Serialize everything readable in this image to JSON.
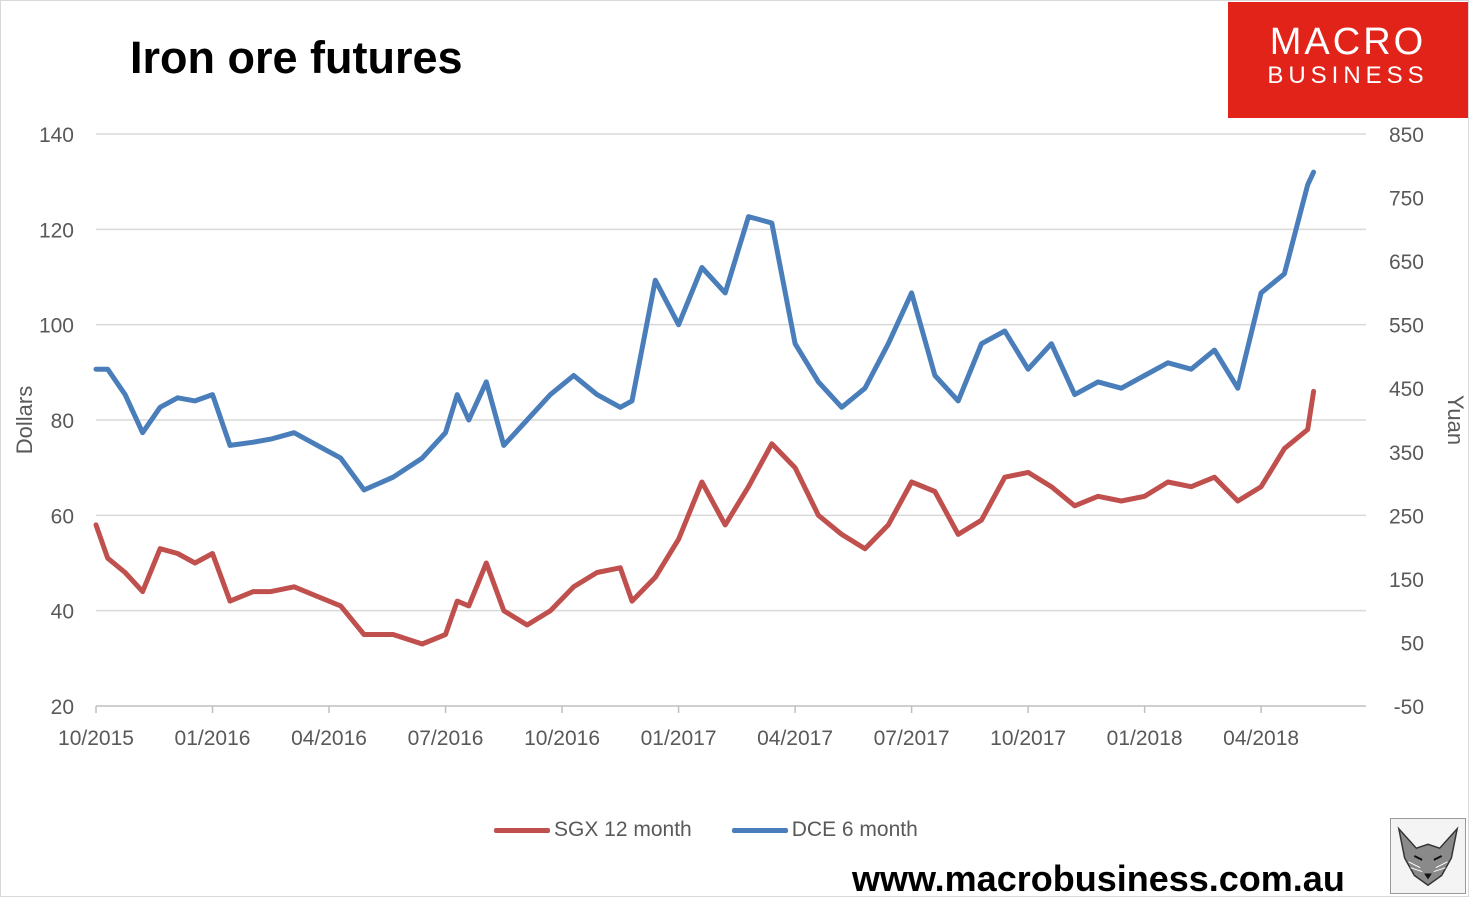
{
  "chart_data": {
    "type": "line",
    "title": "Iron ore futures",
    "ylabel": "Dollars",
    "y2label": "Yuan",
    "ylim": [
      20,
      140
    ],
    "y2lim": [
      -50,
      850
    ],
    "yticks": [
      20,
      40,
      60,
      80,
      100,
      120,
      140
    ],
    "y2ticks": [
      -50,
      50,
      150,
      250,
      350,
      450,
      550,
      650,
      750,
      850
    ],
    "xticks": [
      "10/2015",
      "01/2016",
      "04/2016",
      "07/2016",
      "10/2016",
      "01/2017",
      "04/2017",
      "07/2017",
      "10/2017",
      "01/2018",
      "04/2018"
    ],
    "grid": true,
    "legend_position": "bottom",
    "series": [
      {
        "name": "SGX 12 month",
        "axis": "left",
        "color": "#c0504d",
        "x": [
          0,
          0.1,
          0.25,
          0.4,
          0.55,
          0.7,
          0.85,
          1,
          1.15,
          1.35,
          1.5,
          1.7,
          1.9,
          2.1,
          2.3,
          2.55,
          2.8,
          3,
          3.1,
          3.2,
          3.35,
          3.5,
          3.7,
          3.9,
          4.1,
          4.3,
          4.5,
          4.6,
          4.8,
          5,
          5.2,
          5.4,
          5.6,
          5.8,
          6,
          6.2,
          6.4,
          6.6,
          6.8,
          7,
          7.2,
          7.4,
          7.6,
          7.8,
          8,
          8.2,
          8.4,
          8.6,
          8.8,
          9,
          9.2,
          9.4,
          9.6,
          9.8,
          10,
          10.2,
          10.4,
          10.45
        ],
        "y": [
          58,
          51,
          48,
          44,
          53,
          52,
          50,
          52,
          42,
          44,
          44,
          45,
          43,
          41,
          35,
          35,
          33,
          35,
          42,
          41,
          50,
          40,
          37,
          40,
          45,
          48,
          49,
          42,
          47,
          55,
          67,
          58,
          66,
          75,
          70,
          60,
          56,
          53,
          58,
          67,
          65,
          56,
          59,
          68,
          69,
          66,
          62,
          64,
          63,
          64,
          67,
          66,
          68,
          63,
          66,
          74,
          78,
          86
        ]
      },
      {
        "name": "DCE 6 month",
        "axis": "right",
        "color": "#4a7ebb",
        "x": [
          0,
          0.1,
          0.25,
          0.4,
          0.55,
          0.7,
          0.85,
          1,
          1.15,
          1.35,
          1.5,
          1.7,
          1.9,
          2.1,
          2.3,
          2.55,
          2.8,
          3,
          3.1,
          3.2,
          3.35,
          3.5,
          3.7,
          3.9,
          4.1,
          4.3,
          4.5,
          4.6,
          4.8,
          5,
          5.2,
          5.4,
          5.6,
          5.8,
          6,
          6.2,
          6.4,
          6.6,
          6.8,
          7,
          7.2,
          7.4,
          7.6,
          7.8,
          8,
          8.2,
          8.4,
          8.6,
          8.8,
          9,
          9.2,
          9.4,
          9.6,
          9.8,
          10,
          10.2,
          10.4,
          10.45
        ],
        "y": [
          480,
          480,
          440,
          380,
          420,
          435,
          430,
          440,
          360,
          365,
          370,
          380,
          360,
          340,
          290,
          310,
          340,
          380,
          440,
          400,
          460,
          360,
          400,
          440,
          470,
          440,
          420,
          430,
          620,
          550,
          640,
          600,
          720,
          710,
          520,
          460,
          420,
          450,
          520,
          600,
          470,
          430,
          520,
          540,
          480,
          520,
          440,
          460,
          450,
          470,
          490,
          480,
          510,
          450,
          600,
          630,
          770,
          790
        ]
      }
    ]
  },
  "legend": {
    "sgx_label": "SGX 12 month",
    "dce_label": "DCE 6 month"
  },
  "logo": {
    "line1": "MACRO",
    "line2": "BUSINESS"
  },
  "footer": {
    "url": "www.macrobusiness.com.au"
  },
  "colors": {
    "sgx": "#c0504d",
    "dce": "#4a7ebb",
    "grid": "#d9d9d9",
    "logo_bg": "#e2231a"
  }
}
